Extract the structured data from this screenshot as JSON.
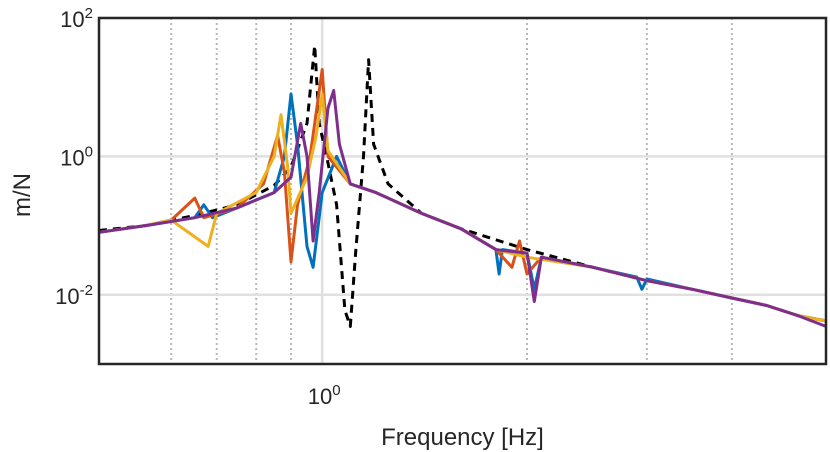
{
  "chart_data": {
    "type": "line",
    "title": "",
    "xlabel": "Frequency [Hz]",
    "ylabel": "m/N",
    "xscale": "log",
    "yscale": "log",
    "xlim": [
      0.47,
      5.5
    ],
    "ylim": [
      0.001,
      100
    ],
    "grid": true,
    "legend": "none",
    "x_ticks": [
      {
        "value": 1,
        "base": "10",
        "exp": "0"
      }
    ],
    "y_ticks": [
      {
        "value": 100,
        "base": "10",
        "exp": "2"
      },
      {
        "value": 1,
        "base": "10",
        "exp": "0"
      },
      {
        "value": 0.01,
        "base": "10",
        "exp": "-2"
      }
    ],
    "x_grid_minor": [
      0.6,
      0.7,
      0.8,
      0.9,
      2,
      3,
      4
    ],
    "series": [
      {
        "color": "#000000",
        "style": "dashed",
        "points": [
          [
            0.47,
            0.085
          ],
          [
            0.55,
            0.1
          ],
          [
            0.65,
            0.14
          ],
          [
            0.75,
            0.2
          ],
          [
            0.85,
            0.38
          ],
          [
            0.9,
            0.7
          ],
          [
            0.95,
            3.0
          ],
          [
            0.975,
            40
          ],
          [
            0.99,
            3.0
          ],
          [
            1.02,
            0.8
          ],
          [
            1.05,
            0.2
          ],
          [
            1.08,
            0.006
          ],
          [
            1.1,
            0.0035
          ],
          [
            1.12,
            0.04
          ],
          [
            1.15,
            1.0
          ],
          [
            1.17,
            25
          ],
          [
            1.19,
            1.5
          ],
          [
            1.25,
            0.4
          ],
          [
            1.4,
            0.15
          ],
          [
            1.6,
            0.09
          ],
          [
            2.0,
            0.045
          ],
          [
            2.5,
            0.025
          ],
          [
            3.0,
            0.016
          ],
          [
            3.5,
            0.012
          ],
          [
            4.0,
            0.009
          ],
          [
            4.5,
            0.007
          ],
          [
            5.0,
            0.005
          ],
          [
            5.5,
            0.0042
          ]
        ]
      },
      {
        "color": "#0072BD",
        "style": "solid",
        "points": [
          [
            0.47,
            0.08
          ],
          [
            0.55,
            0.1
          ],
          [
            0.65,
            0.13
          ],
          [
            0.67,
            0.2
          ],
          [
            0.69,
            0.13
          ],
          [
            0.75,
            0.18
          ],
          [
            0.85,
            0.3
          ],
          [
            0.88,
            1.0
          ],
          [
            0.9,
            8.0
          ],
          [
            0.92,
            1.5
          ],
          [
            0.95,
            0.05
          ],
          [
            0.97,
            0.025
          ],
          [
            1.0,
            0.3
          ],
          [
            1.05,
            1.0
          ],
          [
            1.1,
            0.4
          ],
          [
            1.2,
            0.3
          ],
          [
            1.4,
            0.15
          ],
          [
            1.6,
            0.09
          ],
          [
            1.8,
            0.045
          ],
          [
            1.82,
            0.02
          ],
          [
            1.84,
            0.045
          ],
          [
            2.0,
            0.04
          ],
          [
            2.05,
            0.012
          ],
          [
            2.1,
            0.035
          ],
          [
            2.5,
            0.025
          ],
          [
            2.9,
            0.018
          ],
          [
            2.95,
            0.012
          ],
          [
            3.0,
            0.017
          ],
          [
            3.5,
            0.012
          ],
          [
            4.0,
            0.009
          ],
          [
            4.5,
            0.007
          ],
          [
            5.0,
            0.005
          ],
          [
            5.5,
            0.0042
          ]
        ]
      },
      {
        "color": "#D95319",
        "style": "solid",
        "points": [
          [
            0.47,
            0.08
          ],
          [
            0.55,
            0.1
          ],
          [
            0.6,
            0.12
          ],
          [
            0.65,
            0.25
          ],
          [
            0.67,
            0.13
          ],
          [
            0.75,
            0.18
          ],
          [
            0.82,
            0.4
          ],
          [
            0.86,
            2.0
          ],
          [
            0.88,
            0.6
          ],
          [
            0.9,
            0.03
          ],
          [
            0.92,
            0.2
          ],
          [
            0.96,
            1.0
          ],
          [
            1.0,
            18
          ],
          [
            1.02,
            1.0
          ],
          [
            1.1,
            0.4
          ],
          [
            1.2,
            0.3
          ],
          [
            1.4,
            0.15
          ],
          [
            1.6,
            0.09
          ],
          [
            1.8,
            0.045
          ],
          [
            1.9,
            0.025
          ],
          [
            1.95,
            0.06
          ],
          [
            2.0,
            0.02
          ],
          [
            2.1,
            0.035
          ],
          [
            2.5,
            0.025
          ],
          [
            3.0,
            0.016
          ],
          [
            3.5,
            0.012
          ],
          [
            4.0,
            0.009
          ],
          [
            4.5,
            0.007
          ],
          [
            5.0,
            0.005
          ],
          [
            5.5,
            0.0042
          ]
        ]
      },
      {
        "color": "#EDB120",
        "style": "solid",
        "points": [
          [
            0.47,
            0.08
          ],
          [
            0.55,
            0.1
          ],
          [
            0.6,
            0.12
          ],
          [
            0.68,
            0.05
          ],
          [
            0.7,
            0.15
          ],
          [
            0.8,
            0.3
          ],
          [
            0.85,
            1.0
          ],
          [
            0.87,
            4.0
          ],
          [
            0.89,
            0.7
          ],
          [
            0.9,
            0.15
          ],
          [
            0.95,
            0.5
          ],
          [
            0.98,
            2.0
          ],
          [
            1.0,
            8.0
          ],
          [
            1.02,
            1.2
          ],
          [
            1.1,
            0.4
          ],
          [
            1.2,
            0.3
          ],
          [
            1.4,
            0.15
          ],
          [
            1.6,
            0.09
          ],
          [
            1.8,
            0.045
          ],
          [
            2.0,
            0.035
          ],
          [
            2.5,
            0.025
          ],
          [
            3.0,
            0.016
          ],
          [
            3.5,
            0.012
          ],
          [
            4.0,
            0.009
          ],
          [
            4.5,
            0.007
          ],
          [
            5.0,
            0.005
          ],
          [
            5.5,
            0.0042
          ]
        ]
      },
      {
        "color": "#7E2F8E",
        "style": "solid",
        "points": [
          [
            0.47,
            0.08
          ],
          [
            0.55,
            0.1
          ],
          [
            0.65,
            0.13
          ],
          [
            0.75,
            0.18
          ],
          [
            0.85,
            0.3
          ],
          [
            0.9,
            0.5
          ],
          [
            0.93,
            3.0
          ],
          [
            0.95,
            1.0
          ],
          [
            0.97,
            0.06
          ],
          [
            0.99,
            0.3
          ],
          [
            1.02,
            5.0
          ],
          [
            1.04,
            9.0
          ],
          [
            1.06,
            1.5
          ],
          [
            1.1,
            0.4
          ],
          [
            1.2,
            0.3
          ],
          [
            1.4,
            0.15
          ],
          [
            1.6,
            0.09
          ],
          [
            1.8,
            0.045
          ],
          [
            2.0,
            0.04
          ],
          [
            2.05,
            0.008
          ],
          [
            2.1,
            0.035
          ],
          [
            2.5,
            0.025
          ],
          [
            3.0,
            0.016
          ],
          [
            3.5,
            0.012
          ],
          [
            4.0,
            0.009
          ],
          [
            4.5,
            0.007
          ],
          [
            5.0,
            0.005
          ],
          [
            5.5,
            0.0035
          ]
        ]
      }
    ]
  }
}
